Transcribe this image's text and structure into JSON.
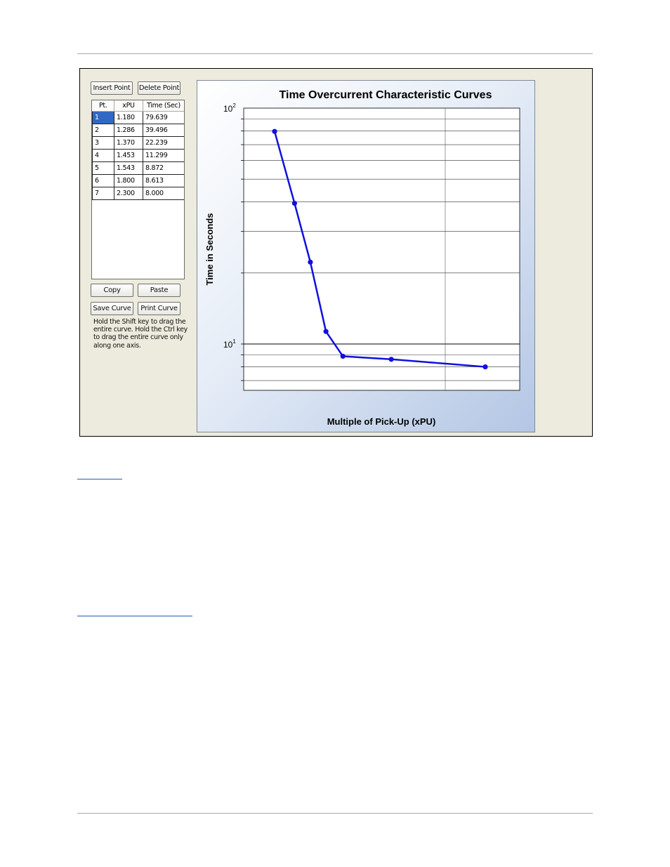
{
  "app": {
    "buttons": {
      "insert_point": "Insert Point",
      "delete_point": "Delete Point",
      "copy": "Copy",
      "paste": "Paste",
      "save_curve": "Save Curve",
      "print_curve": "Print Curve"
    },
    "table": {
      "headers": [
        "Pt.",
        "xPU",
        "Time (Sec)"
      ],
      "rows": [
        [
          "1",
          "1.180",
          "79.639"
        ],
        [
          "2",
          "1.286",
          "39.496"
        ],
        [
          "3",
          "1.370",
          "22.239"
        ],
        [
          "4",
          "1.453",
          "11.299"
        ],
        [
          "5",
          "1.543",
          "8.872"
        ],
        [
          "6",
          "1.800",
          "8.613"
        ],
        [
          "7",
          "2.300",
          "8.000"
        ]
      ],
      "selected_row": 0
    },
    "hint": "Hold the Shift key to drag the entire curve.  Hold the Ctrl key to drag the entire curve only along one axis."
  },
  "chart_data": {
    "type": "line",
    "title": "Time Overcurrent Characteristic Curves",
    "xlabel": "Multiple of Pick-Up (xPU)",
    "ylabel": "Time in Seconds",
    "y_scale": "log",
    "ylim": [
      5,
      100
    ],
    "y_tick_labels": [
      {
        "value": 100,
        "base": "10",
        "exp": "2"
      },
      {
        "value": 10,
        "base": "10",
        "exp": "1"
      }
    ],
    "grid": true,
    "series_color": "#1010e0",
    "series": [
      {
        "x": [
          1.18,
          1.286,
          1.37,
          1.453,
          1.543,
          1.8,
          2.3
        ],
        "y": [
          79.639,
          39.496,
          22.239,
          11.299,
          8.872,
          8.613,
          8.0
        ]
      }
    ]
  }
}
